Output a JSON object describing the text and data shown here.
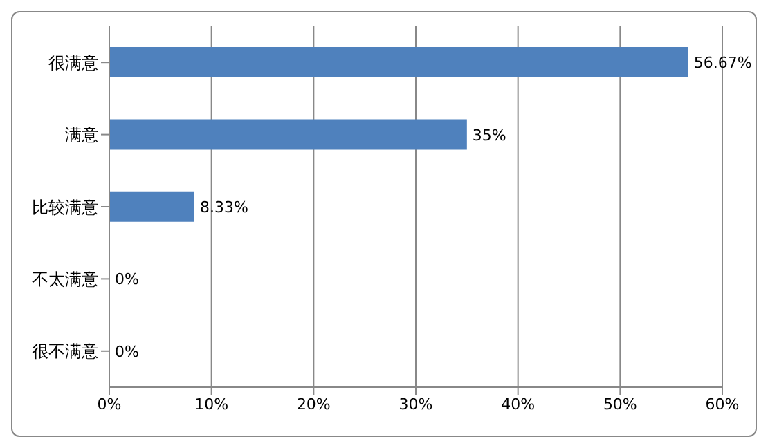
{
  "chart_data": {
    "type": "bar",
    "orientation": "horizontal",
    "categories": [
      "很满意",
      "满意",
      "比较满意",
      "不太满意",
      "很不满意"
    ],
    "values": [
      56.67,
      35,
      8.33,
      0,
      0
    ],
    "color": "#4f81bd",
    "value_labels": [
      "56.67%",
      "35%",
      "8.33%",
      "0%",
      "0%"
    ],
    "xlim": [
      0,
      60
    ],
    "xticks": [
      {
        "value": 0,
        "label": "0%"
      },
      {
        "value": 10,
        "label": "10%"
      },
      {
        "value": 20,
        "label": "20%"
      },
      {
        "value": 30,
        "label": "30%"
      },
      {
        "value": 40,
        "label": "40%"
      },
      {
        "value": 50,
        "label": "50%"
      },
      {
        "value": 60,
        "label": "60%"
      }
    ],
    "grid": "x"
  }
}
